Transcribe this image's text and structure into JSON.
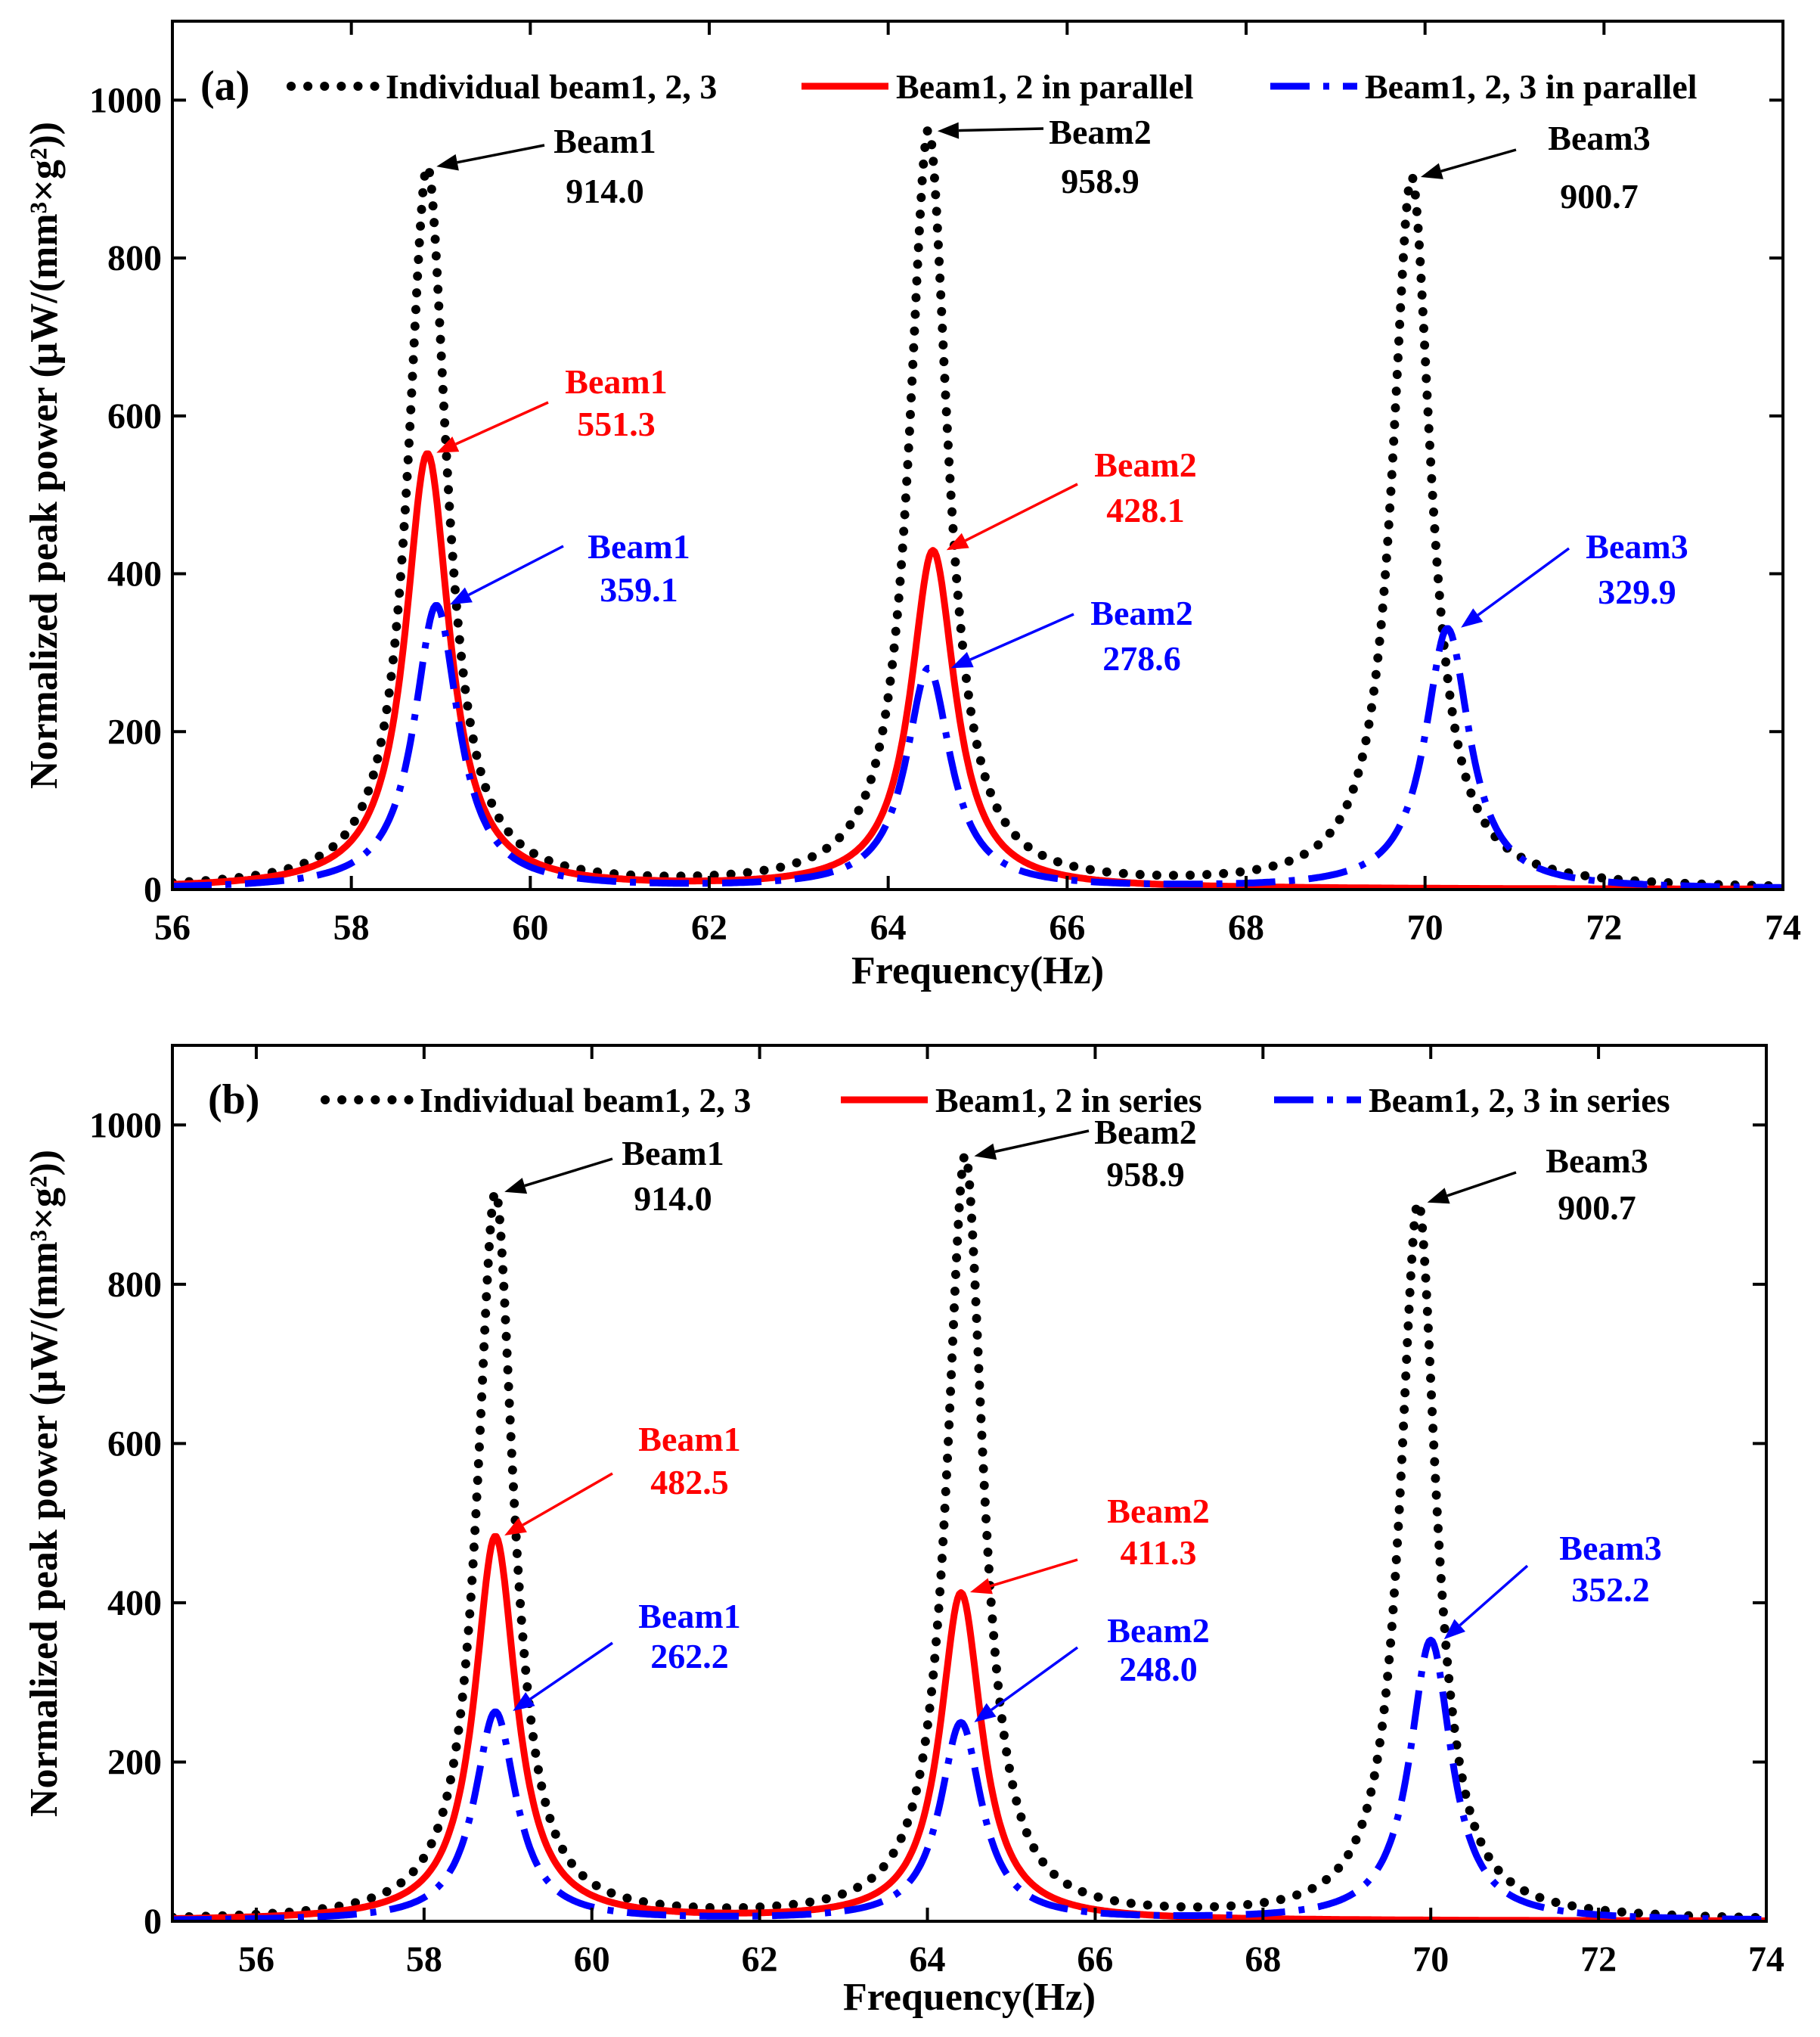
{
  "chart_data": [
    {
      "type": "line",
      "panel_label": "(a)",
      "xlabel": "Frequency(Hz)",
      "ylabel": "Normalized peak power (μW/(mm³×g²))",
      "xlim": [
        56,
        74
      ],
      "ylim": [
        0,
        1100
      ],
      "xticks": [
        56,
        58,
        60,
        62,
        64,
        66,
        68,
        70,
        72,
        74
      ],
      "yticks": [
        0,
        200,
        400,
        600,
        800,
        1000
      ],
      "legend_position": "top",
      "series": [
        {
          "name": "Individual beam1, 2, 3",
          "style": "dotted",
          "color": "#000000",
          "peaks": [
            {
              "label": "Beam1",
              "f0": 58.85,
              "peak": 914.0
            },
            {
              "label": "Beam2",
              "f0": 64.45,
              "peak": 958.9
            },
            {
              "label": "Beam3",
              "f0": 69.85,
              "peak": 900.7
            }
          ]
        },
        {
          "name": "Beam1, 2 in parallel",
          "style": "solid",
          "color": "#ff0000",
          "peaks": [
            {
              "label": "Beam1",
              "f0": 58.85,
              "peak": 551.3
            },
            {
              "label": "Beam2",
              "f0": 64.5,
              "peak": 428.1
            }
          ]
        },
        {
          "name": "Beam1, 2, 3 in parallel",
          "style": "dashdot",
          "color": "#0000ff",
          "peaks": [
            {
              "label": "Beam1",
              "f0": 58.95,
              "peak": 359.1
            },
            {
              "label": "Beam2",
              "f0": 64.45,
              "peak": 278.6
            },
            {
              "label": "Beam3",
              "f0": 70.25,
              "peak": 329.9
            }
          ]
        }
      ],
      "annotations": [
        {
          "series": 0,
          "label": "Beam1",
          "value": "914.0",
          "x": 58.85,
          "y": 914.0
        },
        {
          "series": 0,
          "label": "Beam2",
          "value": "958.9",
          "x": 64.45,
          "y": 958.9
        },
        {
          "series": 0,
          "label": "Beam3",
          "value": "900.7",
          "x": 69.85,
          "y": 900.7
        },
        {
          "series": 1,
          "label": "Beam1",
          "value": "551.3",
          "x": 58.85,
          "y": 551.3
        },
        {
          "series": 1,
          "label": "Beam2",
          "value": "428.1",
          "x": 64.55,
          "y": 428.1
        },
        {
          "series": 2,
          "label": "Beam1",
          "value": "359.1",
          "x": 59.0,
          "y": 359.1
        },
        {
          "series": 2,
          "label": "Beam2",
          "value": "278.6",
          "x": 64.6,
          "y": 278.6
        },
        {
          "series": 2,
          "label": "Beam3",
          "value": "329.9",
          "x": 70.3,
          "y": 329.9
        }
      ]
    },
    {
      "type": "line",
      "panel_label": "(b)",
      "xlabel": "Frequency(Hz)",
      "ylabel": "Normalized peak power (μW/(mm³×g²))",
      "xlim": [
        55,
        74
      ],
      "ylim": [
        0,
        1100
      ],
      "xticks": [
        56,
        58,
        60,
        62,
        64,
        66,
        68,
        70,
        72,
        74
      ],
      "yticks": [
        0,
        200,
        400,
        600,
        800,
        1000
      ],
      "legend_position": "top",
      "series": [
        {
          "name": "Individual beam1, 2, 3",
          "style": "dotted",
          "color": "#000000",
          "peaks": [
            {
              "label": "Beam1",
              "f0": 58.85,
              "peak": 914.0
            },
            {
              "label": "Beam2",
              "f0": 64.45,
              "peak": 958.9
            },
            {
              "label": "Beam3",
              "f0": 69.85,
              "peak": 900.7
            }
          ]
        },
        {
          "name": "Beam1, 2 in series",
          "style": "solid",
          "color": "#ff0000",
          "peaks": [
            {
              "label": "Beam1",
              "f0": 58.85,
              "peak": 482.5
            },
            {
              "label": "Beam2",
              "f0": 64.4,
              "peak": 411.3
            }
          ]
        },
        {
          "name": "Beam1, 2, 3 in series",
          "style": "dashdot",
          "color": "#0000ff",
          "peaks": [
            {
              "label": "Beam1",
              "f0": 58.85,
              "peak": 262.2
            },
            {
              "label": "Beam2",
              "f0": 64.4,
              "peak": 248.0
            },
            {
              "label": "Beam3",
              "f0": 70.0,
              "peak": 352.2
            }
          ]
        }
      ],
      "annotations": [
        {
          "series": 0,
          "label": "Beam1",
          "value": "914.0",
          "x": 58.85,
          "y": 914.0
        },
        {
          "series": 0,
          "label": "Beam2",
          "value": "958.9",
          "x": 64.45,
          "y": 958.9
        },
        {
          "series": 0,
          "label": "Beam3",
          "value": "900.7",
          "x": 69.85,
          "y": 900.7
        },
        {
          "series": 1,
          "label": "Beam1",
          "value": "482.5",
          "x": 58.85,
          "y": 482.5
        },
        {
          "series": 1,
          "label": "Beam2",
          "value": "411.3",
          "x": 64.4,
          "y": 411.3
        },
        {
          "series": 2,
          "label": "Beam1",
          "value": "262.2",
          "x": 58.95,
          "y": 262.2
        },
        {
          "series": 2,
          "label": "Beam2",
          "value": "248.0",
          "x": 64.45,
          "y": 248.0
        },
        {
          "series": 2,
          "label": "Beam3",
          "value": "352.2",
          "x": 70.05,
          "y": 352.2
        }
      ]
    }
  ]
}
